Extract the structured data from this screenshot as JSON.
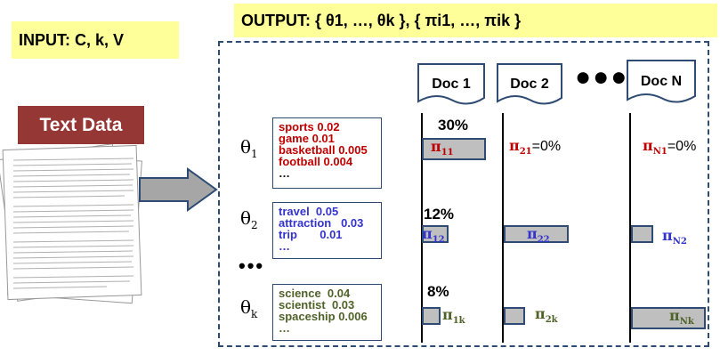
{
  "input_label": "INPUT: C, k, V",
  "output_label": "OUTPUT: { θ1, …, θk }, { πi1, …, πik }",
  "text_data_label": "Text Data",
  "docs": [
    "Doc 1",
    "Doc 2",
    "Doc N"
  ],
  "doc_ellipsis": "●●●",
  "topic_ellipsis": "•••",
  "topics": [
    {
      "symbol": "θ",
      "sub": "1",
      "color": "#c00000",
      "words": [
        "sports  0.02",
        "game  0.01",
        "basketball 0.005",
        "football  0.004",
        "…"
      ]
    },
    {
      "symbol": "θ",
      "sub": "2",
      "color": "#3333cc",
      "words": [
        "travel  0.05",
        "attraction   0.03",
        "trip       0.01",
        "…"
      ]
    },
    {
      "symbol": "θ",
      "sub": "k",
      "color": "#4f6228",
      "words": [
        "science  0.04",
        "scientist  0.03",
        "spaceship 0.006",
        "…"
      ]
    }
  ],
  "pct_labels": [
    "30%",
    "12%",
    "8%"
  ],
  "pi_labels": {
    "p11": "π",
    "p11_sub": "11",
    "p21": "π",
    "p21_sub": "21",
    "p21_tail": "=0%",
    "pN1": "π",
    "pN1_sub": "N1",
    "pN1_tail": "=0%",
    "p12": "π",
    "p12_sub": "12",
    "p22": "π",
    "p22_sub": "22",
    "pN2": "π",
    "pN2_sub": "N2",
    "p1k": "π",
    "p1k_sub": "1k",
    "p2k": "π",
    "p2k_sub": "2k",
    "pNk": "π",
    "pNk_sub": "Nk"
  },
  "coverage": {
    "doc1": [
      0.3,
      0.12,
      0.08
    ],
    "doc2": [
      0.0,
      0.3,
      0.1
    ],
    "docN": [
      0.0,
      0.08,
      0.33
    ]
  },
  "colors": {
    "topic1": "#c00000",
    "topic2": "#3333cc",
    "topicK": "#4f6228",
    "frame": "#2e4b73",
    "highlight": "#ffff99",
    "label_bg": "#953735"
  }
}
